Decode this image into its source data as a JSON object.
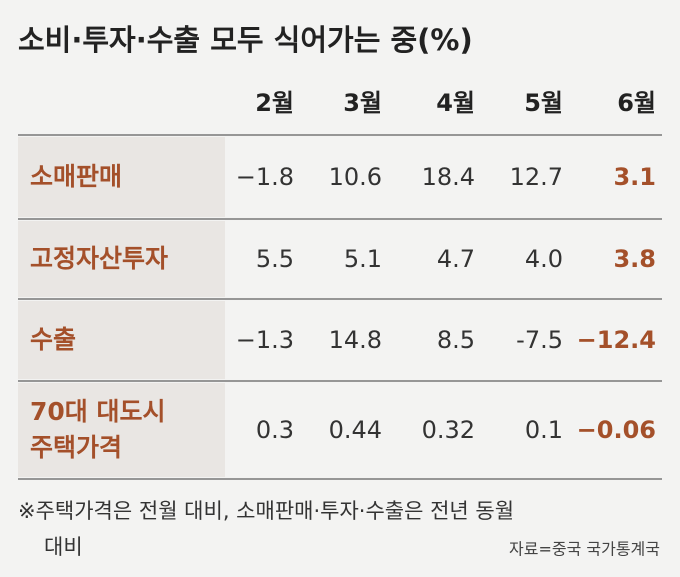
{
  "title": "소비·투자·수출 모두 식어가는 중(%)",
  "table": {
    "columns": [
      "2월",
      "3월",
      "4월",
      "5월",
      "6월"
    ],
    "rows": [
      {
        "label": [
          "소매판매"
        ],
        "values": [
          "−1.8",
          "10.6",
          "18.4",
          "12.7",
          "3.1"
        ]
      },
      {
        "label": [
          "고정자산투자"
        ],
        "values": [
          "5.5",
          "5.1",
          "4.7",
          "4.0",
          "3.8"
        ]
      },
      {
        "label": [
          "수출"
        ],
        "values": [
          "−1.3",
          "14.8",
          "8.5",
          "-7.5",
          "−12.4"
        ]
      },
      {
        "label": [
          "70대 대도시",
          "주택가격"
        ],
        "values": [
          "0.3",
          "0.44",
          "0.32",
          "0.1",
          "−0.06"
        ]
      }
    ]
  },
  "footnote": [
    "※주택가격은 전월 대비, 소매판매·투자·수출은 전년 동월",
    "대비"
  ],
  "source": "자료=중국 국가통계국"
}
